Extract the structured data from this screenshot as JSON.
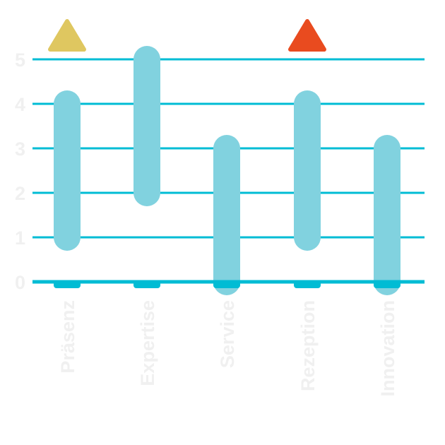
{
  "chart_data": {
    "type": "bar",
    "subtype": "floating-range",
    "categories": [
      "Präsenz",
      "Expertise",
      "Service",
      "Rezeption",
      "Innovation"
    ],
    "ranges": [
      [
        1,
        4
      ],
      [
        2,
        5
      ],
      [
        0,
        3
      ],
      [
        1,
        4
      ],
      [
        0,
        3
      ]
    ],
    "markers": [
      {
        "category": "Präsenz",
        "shape": "triangle",
        "color": "#dfc760"
      },
      {
        "category": "Rezeption",
        "shape": "triangle",
        "color": "#e94b1f"
      }
    ],
    "yticks": [
      "0",
      "1",
      "2",
      "3",
      "4",
      "5"
    ],
    "ylim": [
      0,
      5
    ],
    "grid": true,
    "colors": {
      "bar": "#81d2df",
      "grid": "#00bcd4",
      "baseline": "#00bcd4",
      "labels": "#f0f0f0"
    }
  }
}
